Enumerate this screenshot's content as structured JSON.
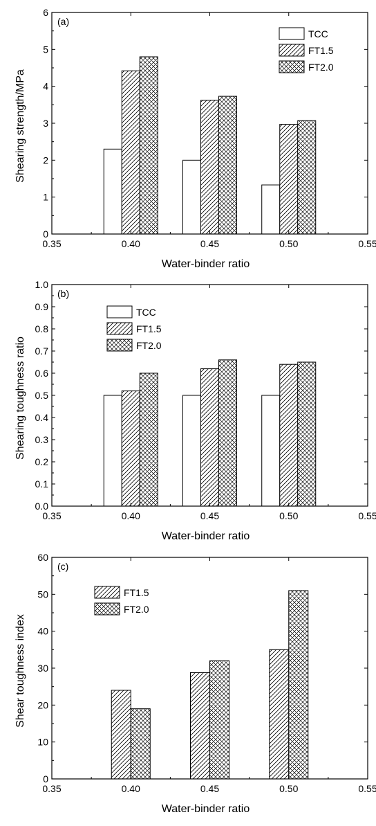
{
  "chart_data": [
    {
      "type": "bar",
      "panel_label": "(a)",
      "xlabel": "Water-binder ratio",
      "ylabel": "Shearing strength/MPa",
      "xlim": [
        0.35,
        0.55
      ],
      "ylim": [
        0,
        6
      ],
      "xticks": [
        "0.35",
        "0.40",
        "0.45",
        "0.50",
        "0.55"
      ],
      "yticks": [
        "0",
        "1",
        "2",
        "3",
        "4",
        "5",
        "6"
      ],
      "categories": [
        "0.40",
        "0.45",
        "0.50"
      ],
      "legend_position": "top-right",
      "series": [
        {
          "name": "TCC",
          "pattern": "none",
          "values": [
            2.3,
            2.0,
            1.33
          ]
        },
        {
          "name": "FT1.5",
          "pattern": "hatch",
          "values": [
            4.42,
            3.62,
            2.97
          ]
        },
        {
          "name": "FT2.0",
          "pattern": "crosshatch",
          "values": [
            4.8,
            3.73,
            3.07
          ]
        }
      ]
    },
    {
      "type": "bar",
      "panel_label": "(b)",
      "xlabel": "Water-binder ratio",
      "ylabel": "Shearing  toughness ratio",
      "xlim": [
        0.35,
        0.55
      ],
      "ylim": [
        0,
        1.0
      ],
      "xticks": [
        "0.35",
        "0.40",
        "0.45",
        "0.50",
        "0.55"
      ],
      "yticks": [
        "0.0",
        "0.1",
        "0.2",
        "0.3",
        "0.4",
        "0.5",
        "0.6",
        "0.7",
        "0.8",
        "0.9",
        "1.0"
      ],
      "categories": [
        "0.40",
        "0.45",
        "0.50"
      ],
      "legend_position": "top-left",
      "series": [
        {
          "name": "TCC",
          "pattern": "none",
          "values": [
            0.5,
            0.5,
            0.5
          ]
        },
        {
          "name": "FT1.5",
          "pattern": "hatch",
          "values": [
            0.52,
            0.62,
            0.64
          ]
        },
        {
          "name": "FT2.0",
          "pattern": "crosshatch",
          "values": [
            0.6,
            0.66,
            0.65
          ]
        }
      ]
    },
    {
      "type": "bar",
      "panel_label": "(c)",
      "xlabel": "Water-binder ratio",
      "ylabel": "Shear toughness index",
      "xlim": [
        0.35,
        0.55
      ],
      "ylim": [
        0,
        60
      ],
      "xticks": [
        "0.35",
        "0.40",
        "0.45",
        "0.50",
        "0.55"
      ],
      "yticks": [
        "0",
        "10",
        "20",
        "30",
        "40",
        "50",
        "60"
      ],
      "categories": [
        "0.40",
        "0.45",
        "0.50"
      ],
      "legend_position": "top-left",
      "series": [
        {
          "name": "FT1.5",
          "pattern": "hatch",
          "values": [
            24,
            28.8,
            35
          ]
        },
        {
          "name": "FT2.0",
          "pattern": "crosshatch",
          "values": [
            19,
            32,
            51
          ]
        }
      ]
    }
  ]
}
